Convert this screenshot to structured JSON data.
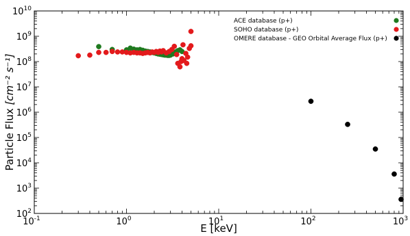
{
  "chart_data": {
    "type": "scatter",
    "x_scale": "log",
    "y_scale": "log",
    "xlim": [
      0.1,
      1000
    ],
    "ylim": [
      100,
      10000000000
    ],
    "xlabel": "E [keV]",
    "ylabel": "Particle Flux",
    "ylabel_units": "[cm⁻² s⁻¹]",
    "x_ticks": [
      {
        "base": "10",
        "exp": "-1",
        "value": 0.1
      },
      {
        "base": "10",
        "exp": "0",
        "value": 1
      },
      {
        "base": "10",
        "exp": "1",
        "value": 10
      },
      {
        "base": "10",
        "exp": "2",
        "value": 100
      },
      {
        "base": "10",
        "exp": "3",
        "value": 1000
      }
    ],
    "y_ticks": [
      {
        "base": "10",
        "exp": "2",
        "value": 100
      },
      {
        "base": "10",
        "exp": "3",
        "value": 1000
      },
      {
        "base": "10",
        "exp": "4",
        "value": 10000
      },
      {
        "base": "10",
        "exp": "5",
        "value": 100000
      },
      {
        "base": "10",
        "exp": "6",
        "value": 1000000
      },
      {
        "base": "10",
        "exp": "7",
        "value": 10000000
      },
      {
        "base": "10",
        "exp": "8",
        "value": 100000000
      },
      {
        "base": "10",
        "exp": "9",
        "value": 1000000000
      },
      {
        "base": "10",
        "exp": "10",
        "value": 10000000000
      }
    ],
    "grid": false,
    "legend_position": "top-right",
    "series": [
      {
        "name": "ACE database (p+)",
        "color": "#1f7a1f",
        "points": [
          [
            0.5,
            390000000.0
          ],
          [
            0.7,
            300000000.0
          ],
          [
            1.0,
            290000000.0
          ],
          [
            1.1,
            340000000.0
          ],
          [
            1.2,
            310000000.0
          ],
          [
            1.3,
            290000000.0
          ],
          [
            1.4,
            300000000.0
          ],
          [
            1.5,
            280000000.0
          ],
          [
            1.6,
            260000000.0
          ],
          [
            1.7,
            250000000.0
          ],
          [
            1.8,
            240000000.0
          ],
          [
            1.9,
            230000000.0
          ],
          [
            2.0,
            220000000.0
          ],
          [
            2.1,
            210000000.0
          ],
          [
            2.2,
            200000000.0
          ],
          [
            2.3,
            195000000.0
          ],
          [
            2.4,
            190000000.0
          ],
          [
            2.5,
            185000000.0
          ],
          [
            2.6,
            180000000.0
          ],
          [
            2.7,
            180000000.0
          ],
          [
            2.8,
            175000000.0
          ],
          [
            2.9,
            175000000.0
          ],
          [
            3.0,
            180000000.0
          ],
          [
            3.2,
            200000000.0
          ],
          [
            3.4,
            240000000.0
          ],
          [
            3.6,
            270000000.0
          ],
          [
            3.8,
            290000000.0
          ],
          [
            4.0,
            250000000.0
          ]
        ]
      },
      {
        "name": "SOHO database (p+)",
        "color": "#e31a1c",
        "points": [
          [
            0.3,
            170000000.0
          ],
          [
            0.4,
            180000000.0
          ],
          [
            0.5,
            230000000.0
          ],
          [
            0.6,
            230000000.0
          ],
          [
            0.7,
            250000000.0
          ],
          [
            0.8,
            240000000.0
          ],
          [
            0.9,
            240000000.0
          ],
          [
            1.0,
            230000000.0
          ],
          [
            1.1,
            220000000.0
          ],
          [
            1.2,
            230000000.0
          ],
          [
            1.3,
            220000000.0
          ],
          [
            1.4,
            220000000.0
          ],
          [
            1.5,
            210000000.0
          ],
          [
            1.6,
            220000000.0
          ],
          [
            1.7,
            230000000.0
          ],
          [
            1.8,
            220000000.0
          ],
          [
            1.9,
            240000000.0
          ],
          [
            2.0,
            230000000.0
          ],
          [
            2.1,
            250000000.0
          ],
          [
            2.2,
            230000000.0
          ],
          [
            2.3,
            260000000.0
          ],
          [
            2.4,
            240000000.0
          ],
          [
            2.5,
            270000000.0
          ],
          [
            2.7,
            220000000.0
          ],
          [
            2.9,
            250000000.0
          ],
          [
            3.1,
            300000000.0
          ],
          [
            3.3,
            400000000.0
          ],
          [
            3.5,
            190000000.0
          ],
          [
            3.6,
            85000000.0
          ],
          [
            3.8,
            62000000.0
          ],
          [
            3.9,
            100000000.0
          ],
          [
            4.0,
            130000000.0
          ],
          [
            4.1,
            460000000.0
          ],
          [
            4.2,
            110000000.0
          ],
          [
            4.4,
            210000000.0
          ],
          [
            4.5,
            85000000.0
          ],
          [
            4.6,
            150000000.0
          ],
          [
            4.8,
            330000000.0
          ],
          [
            5.0,
            420000000.0
          ],
          [
            5.0,
            1550000000.0
          ]
        ]
      },
      {
        "name": "OMERE database - GEO Orbital Average Flux (p+)",
        "color": "#000000",
        "points": [
          [
            100,
            2700000.0
          ],
          [
            250,
            330000.0
          ],
          [
            500,
            35000.0
          ],
          [
            800,
            3600.0
          ],
          [
            950,
            360.0
          ]
        ]
      }
    ]
  }
}
